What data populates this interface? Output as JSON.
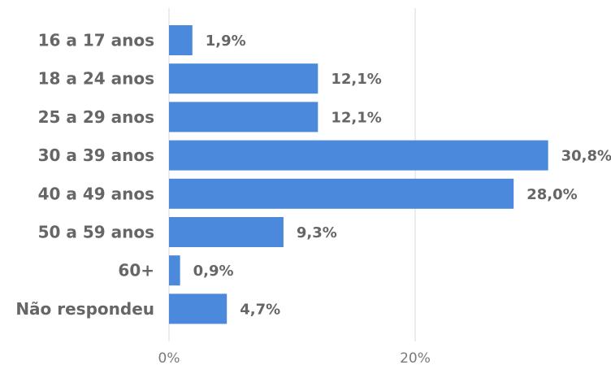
{
  "chart_data": {
    "type": "bar",
    "orientation": "horizontal",
    "categories": [
      "16 a 17 anos",
      "18 a 24 anos",
      "25 a 29 anos",
      "30 a 39 anos",
      "40 a 49 anos",
      "50 a 59 anos",
      "60+",
      "Não respondeu"
    ],
    "values": [
      1.9,
      12.1,
      12.1,
      30.8,
      28.0,
      9.3,
      0.9,
      4.7
    ],
    "value_labels": [
      "1,9%",
      "12,1%",
      "12,1%",
      "30,8%",
      "28,0%",
      "9,3%",
      "0,9%",
      "4,7%"
    ],
    "x_ticks": [
      {
        "value": 0,
        "label": "0%"
      },
      {
        "value": 20,
        "label": "20%"
      }
    ],
    "xlim": [
      0,
      35
    ],
    "title": "",
    "xlabel": "",
    "ylabel": "",
    "grid": "vertical",
    "legend": "none",
    "bar_color": "#4a89dc",
    "grid_color": "#e6e6e6"
  }
}
